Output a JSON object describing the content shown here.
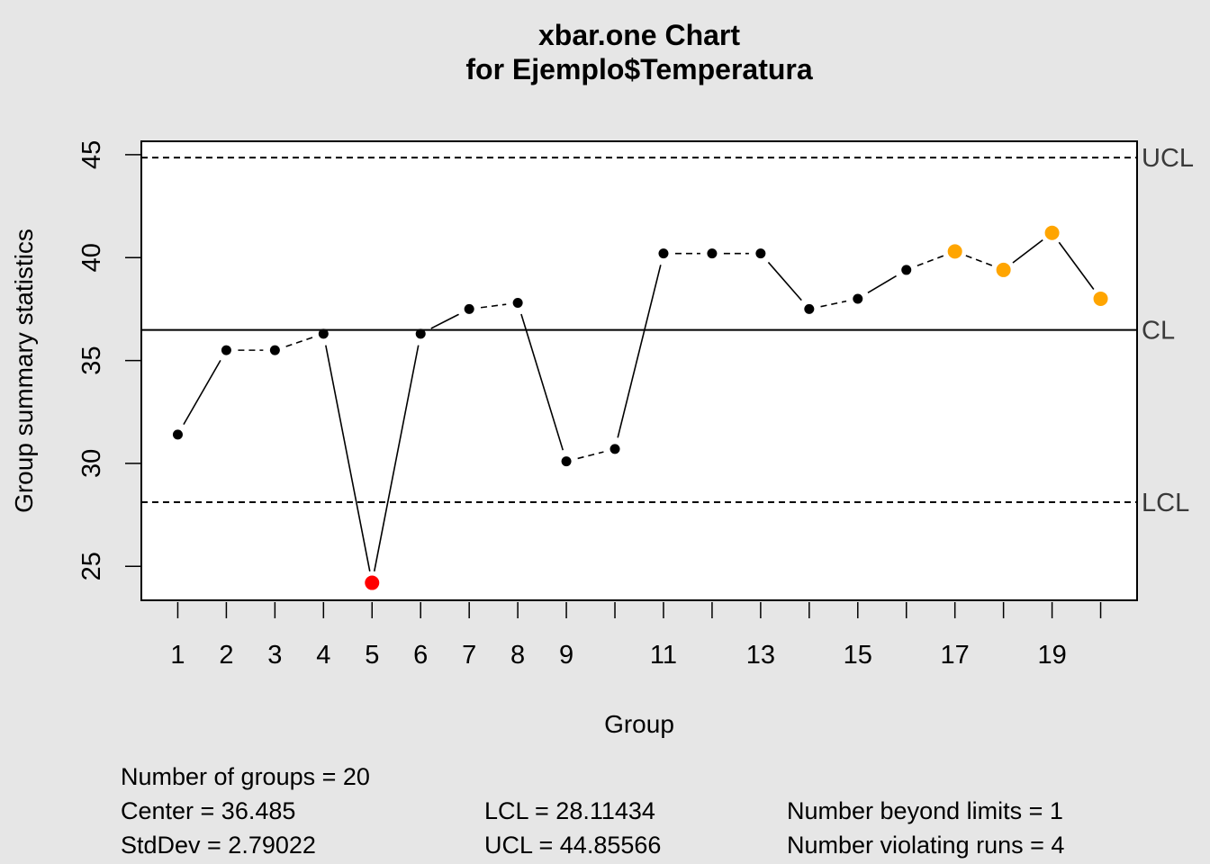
{
  "chart_data": {
    "type": "line",
    "title": "xbar.one Chart",
    "subtitle": "for Ejemplo$Temperatura",
    "xlabel": "Group",
    "ylabel": "Group summary statistics",
    "x": [
      1,
      2,
      3,
      4,
      5,
      6,
      7,
      8,
      9,
      10,
      11,
      12,
      13,
      14,
      15,
      16,
      17,
      18,
      19,
      20
    ],
    "series": [
      {
        "values": [
          31.4,
          35.5,
          35.5,
          36.3,
          24.2,
          36.3,
          37.5,
          37.8,
          30.1,
          30.7,
          40.2,
          40.2,
          40.2,
          37.5,
          38.0,
          39.4,
          40.3,
          39.4,
          41.2,
          38.0
        ],
        "point_status": [
          "normal",
          "normal",
          "normal",
          "normal",
          "beyond",
          "normal",
          "normal",
          "normal",
          "normal",
          "normal",
          "normal",
          "normal",
          "normal",
          "normal",
          "normal",
          "normal",
          "violating",
          "violating",
          "violating",
          "violating"
        ]
      }
    ],
    "status_colors": {
      "normal": "#000000",
      "beyond": "#ff0000",
      "violating": "#ffa500"
    },
    "xlim": [
      0.25,
      20.75
    ],
    "ylim": [
      23.35,
      45.65
    ],
    "x_ticks": [
      1,
      2,
      3,
      4,
      5,
      6,
      7,
      8,
      9,
      10,
      11,
      12,
      13,
      14,
      15,
      16,
      17,
      18,
      19,
      20
    ],
    "x_tick_labels": [
      "1",
      "2",
      "3",
      "4",
      "5",
      "6",
      "7",
      "8",
      "9",
      "",
      "11",
      "",
      "13",
      "",
      "15",
      "",
      "17",
      "",
      "19",
      ""
    ],
    "y_ticks": [
      25,
      30,
      35,
      40,
      45
    ],
    "y_tick_labels": [
      "25",
      "30",
      "35",
      "40",
      "45"
    ],
    "limits": [
      {
        "label": "UCL",
        "value": 44.85566,
        "style": "dashed"
      },
      {
        "label": "CL",
        "value": 36.485,
        "style": "solid"
      },
      {
        "label": "LCL",
        "value": 28.11434,
        "style": "dashed"
      }
    ],
    "grid": false
  },
  "stats": {
    "num_groups": "Number of groups = 20",
    "center": "Center = 36.485",
    "stddev": "StdDev = 2.79022",
    "lcl": "LCL = 28.11434",
    "ucl": "UCL = 44.85566",
    "beyond": "Number beyond limits = 1",
    "violating": "Number violating runs = 4"
  }
}
